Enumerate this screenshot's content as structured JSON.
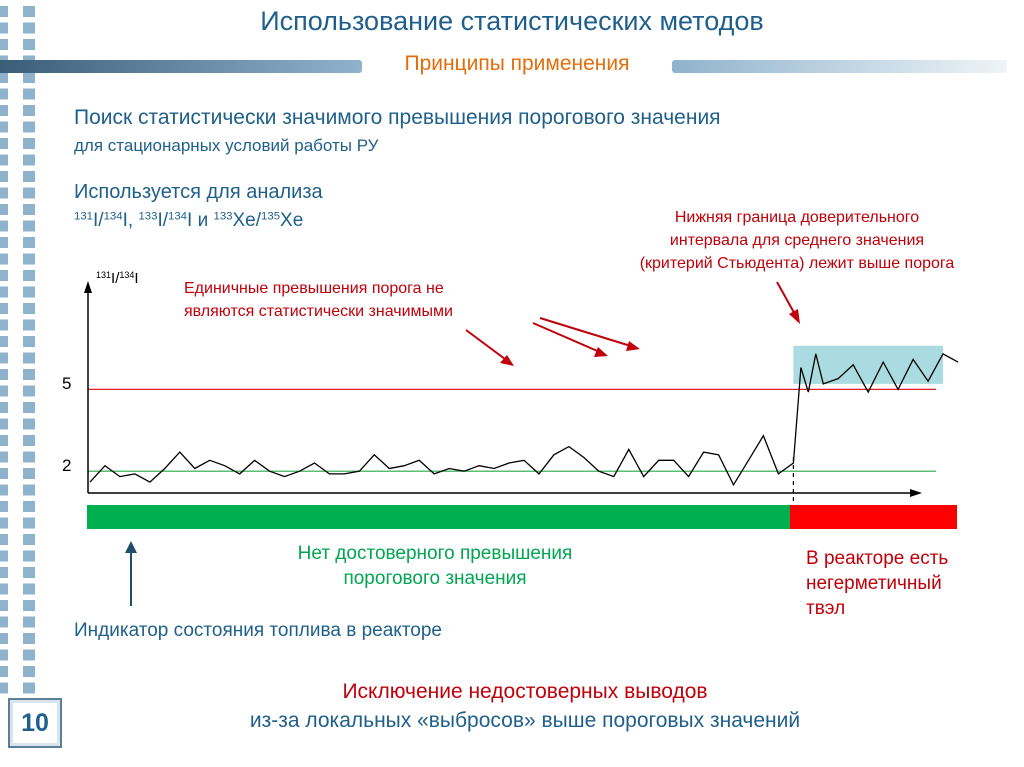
{
  "slide": {
    "title": "Использование статистических методов",
    "subtitle": "Принципы применения",
    "heading1": "Поиск статистически значимого превышения порогового значения",
    "heading2": "для стационарных условий работы РУ",
    "heading3": "Используется для анализа",
    "isotopes": [
      {
        "a_num": "131",
        "a_sym": "I",
        "b_num": "134",
        "b_sym": "I",
        "sep": ", "
      },
      {
        "a_num": "133",
        "a_sym": "I",
        "b_num": "134",
        "b_sym": "I",
        "sep": " и "
      },
      {
        "a_num": "133",
        "a_sym": "Xe",
        "b_num": "135",
        "b_sym": "Xe",
        "sep": ""
      }
    ],
    "note_single_exceedances": [
      "Единичные превышения порога не",
      "являются статистически значимыми"
    ],
    "note_lower_bound": [
      "Нижняя граница доверительного",
      "интервала для среднего значения",
      "(критерий Стьюдента) лежит выше порога"
    ],
    "green_zone_text": [
      "Нет достоверного превышения",
      "порогового значения"
    ],
    "red_zone_text": [
      "В реакторе есть",
      "негерметичный",
      "твэл"
    ],
    "indicator_text": "Индикатор состояния топлива в реакторе",
    "conclusion_line1": "Исключение недостоверных выводов",
    "conclusion_line2": "из-за локальных «выбросов» выше пороговых значений",
    "page_number": "10"
  },
  "colors": {
    "title": "#1f5f8b",
    "subtitle": "#e46c0a",
    "note_red": "#c0000a",
    "green_zone": "#00b050",
    "red_zone": "#ff0000",
    "threshold_line": "#e02020",
    "baseline_line": "#22aa44",
    "confidence_box": "#a9dbe0",
    "strip_square": "#8fb3cc"
  },
  "chart_data": {
    "type": "line",
    "ylabel": {
      "num_a": "131",
      "sym_a": "I",
      "num_b": "134",
      "sym_b": "I"
    },
    "yticks": [
      2,
      5
    ],
    "ylim": [
      1.2,
      8.9
    ],
    "xlim": [
      0,
      58
    ],
    "threshold": 5,
    "baseline": 2,
    "change_point_index": 47,
    "confidence_interval": {
      "x_start": 47,
      "x_end": 57,
      "y_low": 5.2,
      "y_high": 6.6
    },
    "values": [
      1.6,
      2.2,
      1.8,
      1.9,
      1.6,
      2.1,
      2.7,
      2.1,
      2.4,
      2.2,
      1.9,
      2.4,
      2.0,
      1.8,
      2.0,
      2.3,
      1.9,
      1.9,
      2.0,
      2.6,
      2.1,
      2.2,
      2.4,
      1.9,
      2.1,
      2.0,
      2.2,
      2.1,
      2.3,
      2.4,
      1.9,
      2.6,
      2.9,
      2.5,
      2.0,
      1.8,
      2.8,
      1.8,
      2.4,
      2.4,
      1.8,
      2.7,
      2.6,
      1.5,
      2.4,
      3.3,
      1.9,
      2.3,
      5.8,
      4.9,
      6.3,
      5.2,
      5.4,
      5.9,
      4.9,
      6.0,
      5.0,
      6.1,
      5.3,
      6.3,
      6.0
    ],
    "x_positions": [
      0,
      1,
      2,
      3,
      4,
      5,
      6,
      7,
      8,
      9,
      10,
      11,
      12,
      13,
      14,
      15,
      16,
      17,
      18,
      19,
      20,
      21,
      22,
      23,
      24,
      25,
      26,
      27,
      28,
      29,
      30,
      31,
      32,
      33,
      34,
      35,
      36,
      37,
      38,
      39,
      40,
      41,
      42,
      43,
      44,
      45,
      46,
      47,
      47.5,
      48,
      48.5,
      49,
      50,
      51,
      52,
      53,
      54,
      55,
      56,
      57,
      58
    ]
  }
}
